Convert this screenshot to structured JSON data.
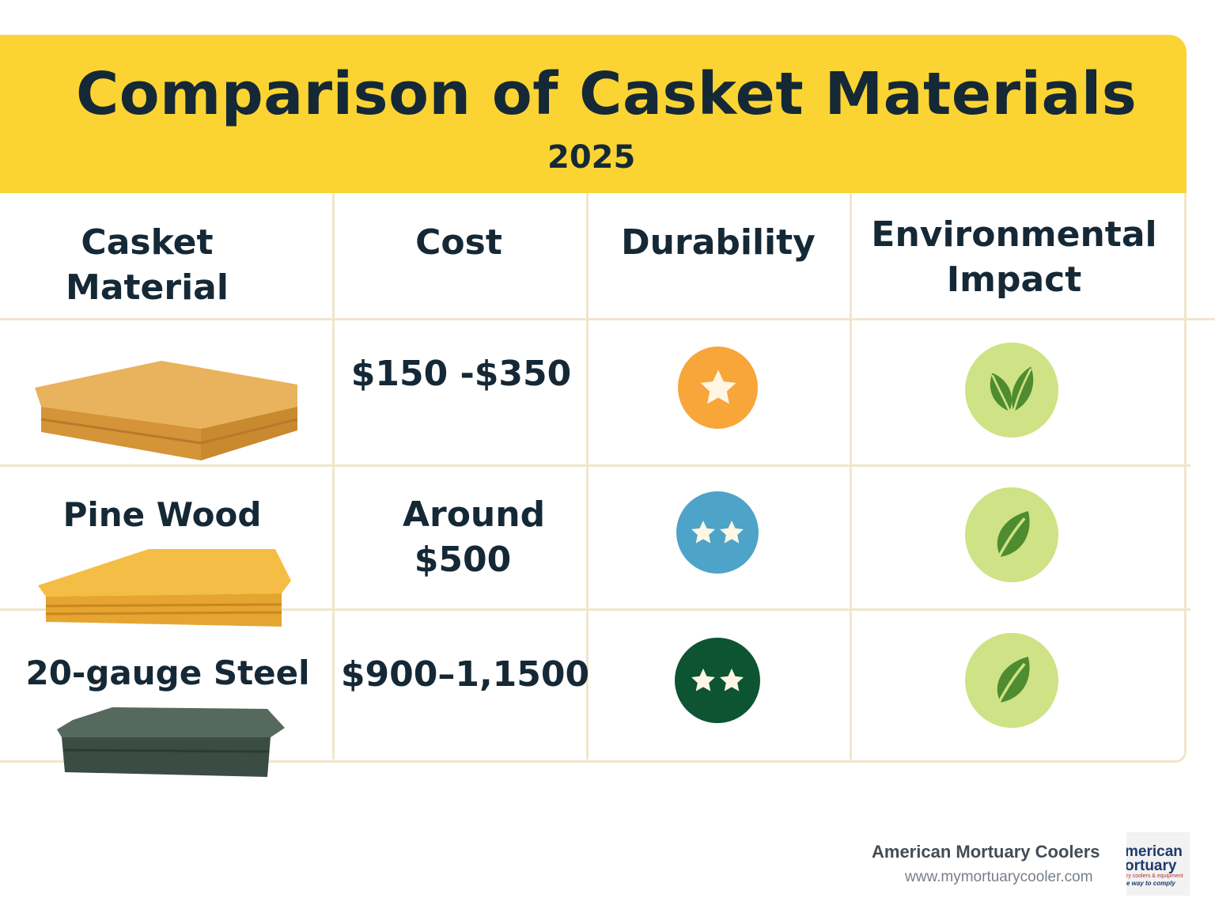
{
  "title": "Comparison of Casket Materials",
  "subtitle": "2025",
  "headers": {
    "material": [
      "Casket",
      "Material"
    ],
    "cost": "Cost",
    "durability": "Durability",
    "environmental": [
      "Environmental",
      "Impact"
    ]
  },
  "rows": [
    {
      "material": "",
      "cost": "$150 -$350",
      "durability_stars": 1,
      "durability_color": "#f8a53a",
      "leaf_icon": "double-leaf-icon",
      "casket_color": "#e1a64b"
    },
    {
      "material": "Pine Wood",
      "cost": [
        "Around",
        "$500"
      ],
      "durability_stars": 2,
      "durability_color": "#4da3c8",
      "leaf_icon": "leaf-icon",
      "casket_color": "#f0b23f"
    },
    {
      "material": "20-gauge Steel",
      "cost": "$900–1,1500",
      "durability_stars": 2,
      "durability_color": "#0d5432",
      "leaf_icon": "leaf-icon",
      "casket_color": "#3e5248"
    }
  ],
  "footer": {
    "company": "American Mortuary Coolers",
    "url": "www.mymortuarycooler.com",
    "logo_text": [
      "merican",
      "ortuary",
      "ry coolers & equipment",
      "e way to comply"
    ]
  },
  "colors": {
    "banner": "#fbd433",
    "grid": "#f0e6cc",
    "text": "#152836",
    "leaf_bg": "#cfe285",
    "leaf": "#4e8c2f"
  }
}
